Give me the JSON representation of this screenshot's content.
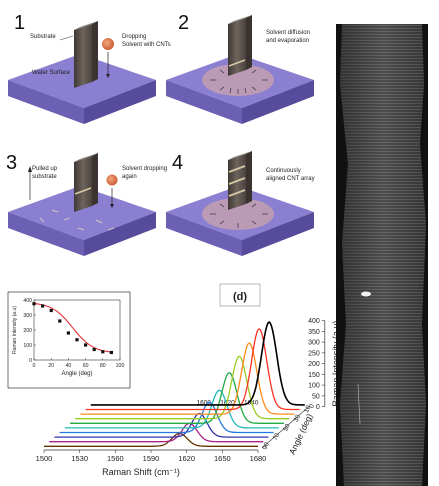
{
  "panels": [
    {
      "step": "1",
      "notes": [
        "Substrate",
        "Dropping",
        "Solvent with CNTs",
        "Water Surface"
      ]
    },
    {
      "step": "2",
      "notes": [
        "Solvent diffusion",
        "and evaporation"
      ]
    },
    {
      "step": "3",
      "notes": [
        "Pulled up",
        "substrate",
        "Solvent dropping",
        "again"
      ]
    },
    {
      "step": "4",
      "notes": [
        "Continuously",
        "aligned CNT array"
      ]
    }
  ],
  "colors": {
    "water": "#7c6fc0",
    "water_side": "#5a4ea0",
    "water_top": "#8a7fd0",
    "substrate": "#5a514b",
    "droplet": "#e07a4e",
    "ring": "#e3b0a0",
    "inset_fit": "#e0343a"
  },
  "raman_plot": {
    "panel_label": "(d)",
    "x_axis_label": "Raman Shift (cm⁻¹)",
    "y_axis_label": "Raman Intensity (a.u)",
    "angle_axis_label": "Angle (deg)",
    "x_ticks": [
      "1500",
      "1530",
      "1560",
      "1590",
      "1620",
      "1650",
      "1680"
    ],
    "peak_ticks": [
      "1600",
      "1620",
      "1640"
    ],
    "y_ticks": [
      "0",
      "50",
      "100",
      "150",
      "200",
      "250",
      "300",
      "350",
      "400"
    ],
    "angle_ticks": [
      "0",
      "10",
      "30",
      "50",
      "70",
      "90"
    ],
    "inset": {
      "x_ticks": [
        "0",
        "20",
        "40",
        "60",
        "80",
        "100"
      ],
      "y_ticks": [
        "0",
        "100",
        "200",
        "300",
        "400"
      ],
      "x_label": "Angle (deg)",
      "y_label": "Raman Intensity (a.u)"
    }
  },
  "chart_data": [
    {
      "type": "line",
      "title": "(d)",
      "xlabel": "Raman Shift (cm⁻¹)",
      "ylabel": "Raman Intensity (a.u)",
      "xlim": [
        1500,
        1680
      ],
      "ylim": [
        0,
        400
      ],
      "series": [
        {
          "name": "0",
          "color": "#000000",
          "peak_x": 1650,
          "peak_y": 385
        },
        {
          "name": "10",
          "color": "#ff3322",
          "peak_x": 1646,
          "peak_y": 375
        },
        {
          "name": "20",
          "color": "#ff8a1a",
          "peak_x": 1642,
          "peak_y": 330
        },
        {
          "name": "30",
          "color": "#99cc22",
          "peak_x": 1638,
          "peak_y": 290
        },
        {
          "name": "40",
          "color": "#22aa44",
          "peak_x": 1634,
          "peak_y": 235
        },
        {
          "name": "50",
          "color": "#22bbbb",
          "peak_x": 1630,
          "peak_y": 175
        },
        {
          "name": "60",
          "color": "#2277dd",
          "peak_x": 1626,
          "peak_y": 140
        },
        {
          "name": "70",
          "color": "#3333aa",
          "peak_x": 1622,
          "peak_y": 110
        },
        {
          "name": "80",
          "color": "#aa2288",
          "peak_x": 1618,
          "peak_y": 85
        },
        {
          "name": "90",
          "color": "#663300",
          "peak_x": 1614,
          "peak_y": 60
        }
      ]
    },
    {
      "type": "scatter",
      "xlabel": "Angle (deg)",
      "ylabel": "Raman Intensity (a.u)",
      "xlim": [
        0,
        100
      ],
      "ylim": [
        0,
        400
      ],
      "x": [
        0,
        10,
        20,
        30,
        40,
        50,
        60,
        70,
        80,
        90
      ],
      "y": [
        375,
        360,
        330,
        260,
        180,
        135,
        100,
        70,
        55,
        50
      ]
    }
  ]
}
